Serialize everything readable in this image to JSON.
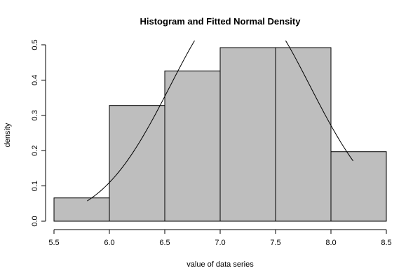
{
  "chart_data": {
    "type": "bar",
    "title": "Histogram and Fitted Normal Density",
    "xlabel": "value of data series",
    "ylabel": "density",
    "bins": [
      {
        "from": 5.5,
        "to": 6.0,
        "value": 0.066
      },
      {
        "from": 6.0,
        "to": 6.5,
        "value": 0.328
      },
      {
        "from": 6.5,
        "to": 7.0,
        "value": 0.426
      },
      {
        "from": 7.0,
        "to": 7.5,
        "value": 0.492
      },
      {
        "from": 7.5,
        "to": 8.0,
        "value": 0.492
      },
      {
        "from": 8.0,
        "to": 8.5,
        "value": 0.197
      }
    ],
    "xlim": [
      5.5,
      8.5
    ],
    "ylim": [
      0,
      0.5
    ],
    "x_ticks": [
      "5.5",
      "6.0",
      "6.5",
      "7.0",
      "7.5",
      "8.0",
      "8.5"
    ],
    "y_ticks": [
      "0.0",
      "0.1",
      "0.2",
      "0.3",
      "0.4",
      "0.5"
    ],
    "fitted_normal": {
      "mean": 7.18,
      "sd": 0.63,
      "x_range": [
        5.8,
        8.2
      ]
    },
    "bar_color": "#bebebe",
    "grid": false
  }
}
